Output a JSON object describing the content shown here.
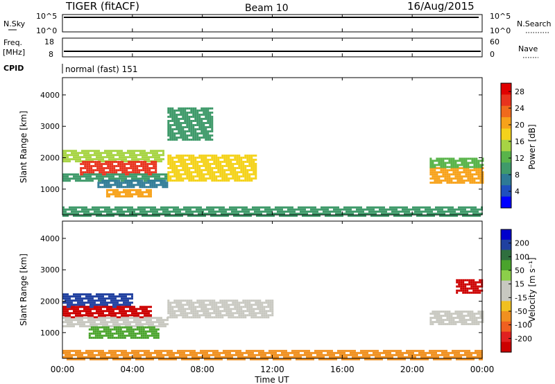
{
  "header": {
    "radar": "TIGER (fitACF)",
    "beam": "Beam 10",
    "date": "16/Aug/2015"
  },
  "nsky_panel": {
    "left_label": "N.Sky",
    "right_label": "N.Search",
    "left_ticks": [
      "10^5",
      "10^0"
    ],
    "right_ticks": [
      "10^5",
      "10^0"
    ]
  },
  "freq_panel": {
    "left_label_1": "Freq.",
    "left_label_2": "[MHz]",
    "right_label": "Nave",
    "left_ticks": [
      "18",
      "8"
    ],
    "right_ticks": [
      "60",
      "0"
    ]
  },
  "cpid": {
    "label": "CPID",
    "value": "normal (fast) 151"
  },
  "chart_data": [
    {
      "type": "heatmap",
      "name": "power",
      "ylabel": "Slant Range [km]",
      "xlabel": "",
      "y_ticks": [
        "1000",
        "2000",
        "3000",
        "4000"
      ],
      "ylim": [
        180,
        4550
      ],
      "colorbar": {
        "label": "Power [dB]",
        "ticks": [
          "4",
          "8",
          "12",
          "16",
          "20",
          "24",
          "28"
        ],
        "range": [
          0,
          30
        ],
        "colors": [
          "#0000ff",
          "#1f4fbe",
          "#2e7a96",
          "#3f9a6a",
          "#59b44a",
          "#a7d444",
          "#f4d21c",
          "#f7a21a",
          "#f06a1c",
          "#e8331d",
          "#e00000"
        ]
      },
      "regions": [
        {
          "t0": 0.0,
          "t1": 5.8,
          "r0": 1900,
          "r1": 2250,
          "value": 14
        },
        {
          "t0": 1.0,
          "t1": 5.4,
          "r0": 1500,
          "r1": 1900,
          "value": 26
        },
        {
          "t0": 0.0,
          "t1": 6.0,
          "r0": 1300,
          "r1": 1500,
          "value": 10
        },
        {
          "t0": 2.0,
          "t1": 6.0,
          "r0": 1100,
          "r1": 1300,
          "value": 6
        },
        {
          "t0": 2.5,
          "t1": 5.0,
          "r0": 750,
          "r1": 1000,
          "value": 22
        },
        {
          "t0": 6.0,
          "t1": 11.0,
          "r0": 1300,
          "r1": 2100,
          "value": 18
        },
        {
          "t0": 21.0,
          "t1": 24.0,
          "r0": 1200,
          "r1": 1700,
          "value": 22
        },
        {
          "t0": 21.0,
          "t1": 24.0,
          "r0": 1700,
          "r1": 2000,
          "value": 12
        },
        {
          "t0": 6.0,
          "t1": 8.5,
          "r0": 2600,
          "r1": 3600,
          "value": 8
        },
        {
          "t0": 0.0,
          "t1": 24.0,
          "r0": 180,
          "r1": 450,
          "value": 8
        }
      ],
      "x_ticks": []
    },
    {
      "type": "heatmap",
      "name": "velocity",
      "ylabel": "Slant Range [km]",
      "xlabel": "Time UT",
      "x_ticks": [
        "00:00",
        "04:00",
        "08:00",
        "12:00",
        "16:00",
        "20:00",
        "00:00"
      ],
      "y_ticks": [
        "1000",
        "2000",
        "3000",
        "4000"
      ],
      "ylim": [
        180,
        4550
      ],
      "colorbar": {
        "label": "Velocity [m s⁻¹]",
        "ticks": [
          "200",
          "100",
          "50",
          "15",
          "-15",
          "-50",
          "-100",
          "-200"
        ],
        "colors": [
          "#0000cc",
          "#2040a0",
          "#2f6f3f",
          "#4aa32c",
          "#8ccf4a",
          "#c8c8c0",
          "#c8c8c0",
          "#f0c020",
          "#f09020",
          "#f06020",
          "#e02020",
          "#cc0000"
        ]
      },
      "regions": [
        {
          "t0": 0.0,
          "t1": 4.0,
          "r0": 1850,
          "r1": 2250,
          "value": 150
        },
        {
          "t0": 0.0,
          "t1": 5.0,
          "r0": 1500,
          "r1": 1850,
          "value": -150
        },
        {
          "t0": 0.0,
          "t1": 6.0,
          "r0": 1200,
          "r1": 1500,
          "value": 0
        },
        {
          "t0": 1.5,
          "t1": 5.5,
          "r0": 850,
          "r1": 1200,
          "value": 60
        },
        {
          "t0": 6.0,
          "t1": 12.0,
          "r0": 1500,
          "r1": 2050,
          "value": 0
        },
        {
          "t0": 21.0,
          "t1": 24.0,
          "r0": 1250,
          "r1": 1700,
          "value": 0
        },
        {
          "t0": 22.5,
          "t1": 24.0,
          "r0": 2300,
          "r1": 2700,
          "value": -150
        },
        {
          "t0": 0.0,
          "t1": 24.0,
          "r0": 180,
          "r1": 450,
          "value": -40
        }
      ]
    }
  ],
  "time_axis_hours": [
    0,
    4,
    8,
    12,
    16,
    20,
    24
  ]
}
